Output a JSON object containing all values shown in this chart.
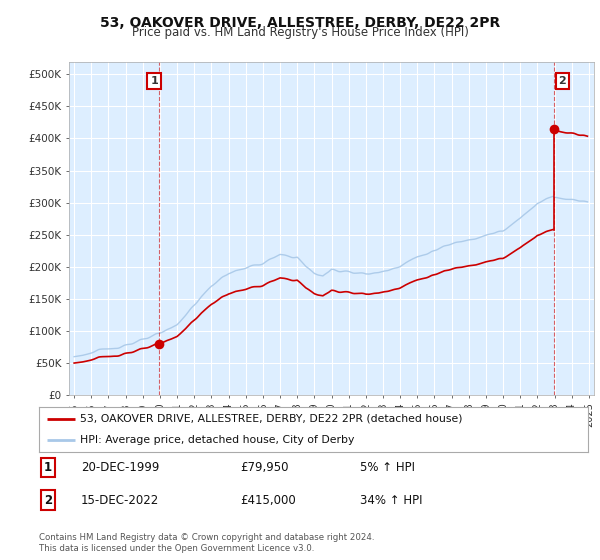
{
  "title": "53, OAKOVER DRIVE, ALLESTREE, DERBY, DE22 2PR",
  "subtitle": "Price paid vs. HM Land Registry's House Price Index (HPI)",
  "ylabel_ticks": [
    "£0",
    "£50K",
    "£100K",
    "£150K",
    "£200K",
    "£250K",
    "£300K",
    "£350K",
    "£400K",
    "£450K",
    "£500K"
  ],
  "ytick_values": [
    0,
    50000,
    100000,
    150000,
    200000,
    250000,
    300000,
    350000,
    400000,
    450000,
    500000
  ],
  "ylim": [
    0,
    520000
  ],
  "sale1": {
    "date_label": "20-DEC-1999",
    "price": 79950,
    "pct": "5%",
    "direction": "↑",
    "label": "1"
  },
  "sale2": {
    "date_label": "15-DEC-2022",
    "price": 415000,
    "pct": "34%",
    "direction": "↑",
    "label": "2"
  },
  "sale1_year": 1999.958,
  "sale2_year": 2022.958,
  "hpi_color": "#a8c8e8",
  "price_color": "#cc0000",
  "grid_color": "#cccccc",
  "background_color": "#ffffff",
  "plot_bg_color": "#ddeeff",
  "legend_label1": "53, OAKOVER DRIVE, ALLESTREE, DERBY, DE22 2PR (detached house)",
  "legend_label2": "HPI: Average price, detached house, City of Derby",
  "footnote": "Contains HM Land Registry data © Crown copyright and database right 2024.\nThis data is licensed under the Open Government Licence v3.0.",
  "xmin": 1994.7,
  "xmax": 2025.3,
  "xtick_years": [
    1995,
    1996,
    1997,
    1998,
    1999,
    2000,
    2001,
    2002,
    2003,
    2004,
    2005,
    2006,
    2007,
    2008,
    2009,
    2010,
    2011,
    2012,
    2013,
    2014,
    2015,
    2016,
    2017,
    2018,
    2019,
    2020,
    2021,
    2022,
    2023,
    2024,
    2025
  ]
}
